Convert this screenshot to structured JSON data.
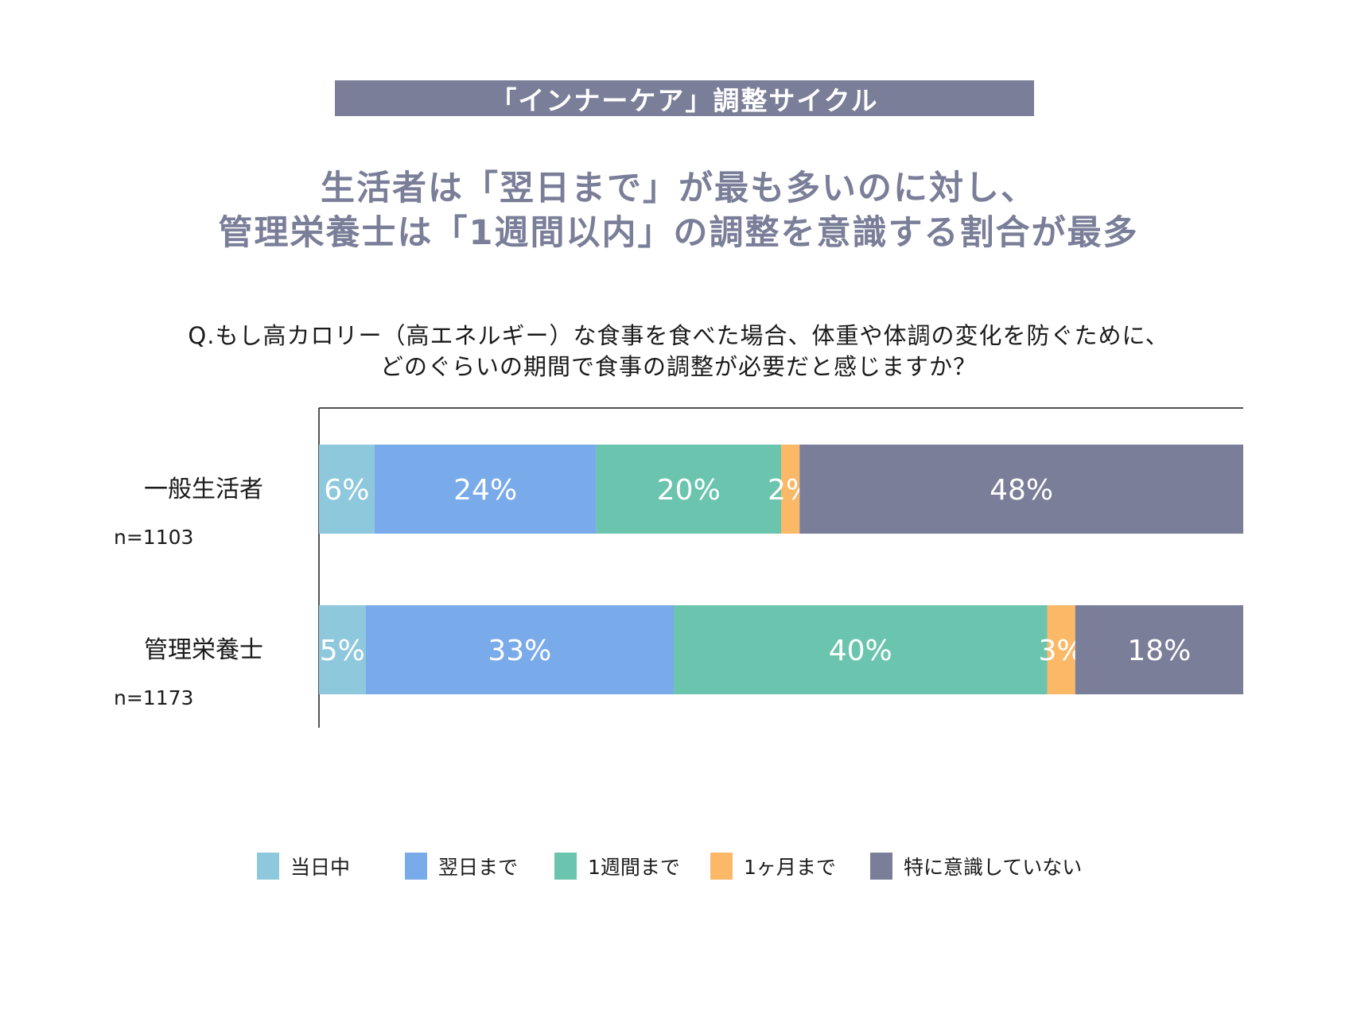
{
  "banner": {
    "text": "「インナーケア」調整サイクル"
  },
  "headline": {
    "line1": "生活者は「翌日まで」が最も多いのに対し、",
    "line2": "管理栄養士は「1週間以内」の調整を意識する割合が最多"
  },
  "question": {
    "line1": "Q.もし高カロリー（高エネルギー）な食事を食べた場合、体重や体調の変化を防ぐために、",
    "line2": "どのぐらいの期間で食事の調整が必要だと感じますか？"
  },
  "chart_data": {
    "type": "bar",
    "orientation": "horizontal",
    "stacked": true,
    "percent_stacked": true,
    "categories": [
      "一般生活者",
      "管理栄養士"
    ],
    "sample_sizes": [
      "n=1103",
      "n=1173"
    ],
    "series": [
      {
        "name": "当日中",
        "color": "#8ec8dc",
        "values": [
          6,
          5
        ]
      },
      {
        "name": "翌日まで",
        "color": "#79aaea",
        "values": [
          24,
          33
        ]
      },
      {
        "name": "1週間まで",
        "color": "#6bc4ae",
        "values": [
          20,
          40
        ]
      },
      {
        "name": "1ヶ月まで",
        "color": "#fbb968",
        "values": [
          2,
          3
        ]
      },
      {
        "name": "特に意識していない",
        "color": "#7a7e98",
        "values": [
          48,
          18
        ]
      }
    ],
    "value_suffix": "%",
    "legend_position": "bottom",
    "grid": false
  }
}
